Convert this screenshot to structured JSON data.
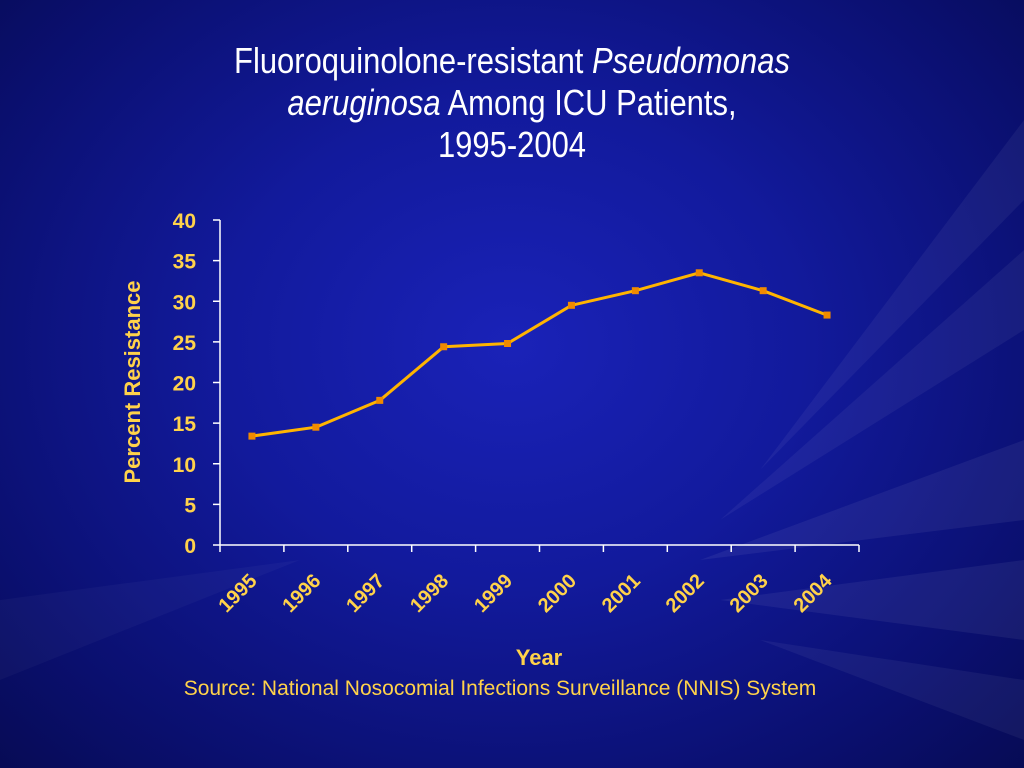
{
  "slide": {
    "title_line1_plain": "Fluoroquinolone-resistant ",
    "title_line1_italic": "Pseudomonas",
    "title_line2_italic": "aeruginosa",
    "title_line2_plain": " Among ICU Patients,",
    "title_line3": "1995-2004",
    "source": "Source: National Nosocomial Infections Surveillance (NNIS) System"
  },
  "colors": {
    "background": "#121a9c",
    "axis_text": "#ffd24a",
    "line": "#ffb400",
    "marker": "#f08a00",
    "axis": "#ffffff"
  },
  "chart_data": {
    "type": "line",
    "title": "Fluoroquinolone-resistant Pseudomonas aeruginosa Among ICU Patients, 1995-2004",
    "xlabel": "Year",
    "ylabel": "Percent Resistance",
    "categories": [
      "1995",
      "1996",
      "1997",
      "1998",
      "1999",
      "2000",
      "2001",
      "2002",
      "2003",
      "2004"
    ],
    "values": [
      13.4,
      14.5,
      17.8,
      24.4,
      24.8,
      29.5,
      31.3,
      33.5,
      31.3,
      28.3
    ],
    "ylim": [
      0,
      40
    ],
    "yticks": [
      "0",
      "5",
      "10",
      "15",
      "20",
      "25",
      "30",
      "35",
      "40"
    ],
    "grid": false,
    "legend": "none"
  }
}
